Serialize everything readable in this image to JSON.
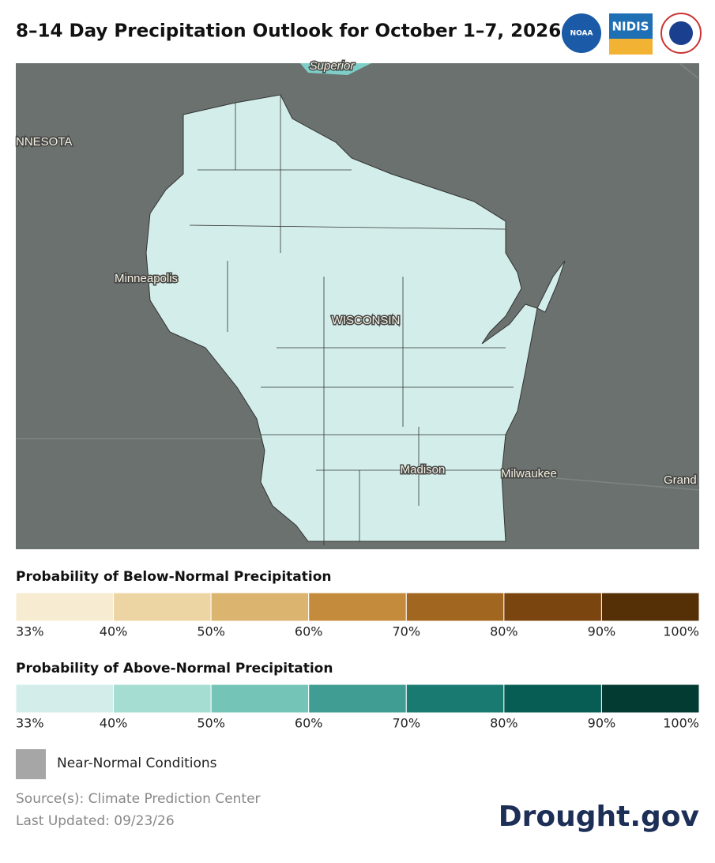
{
  "header": {
    "title": "8–14 Day Precipitation Outlook for October 1–7, 2026",
    "logos": [
      "NOAA",
      "NIDIS"
    ]
  },
  "map": {
    "labels": [
      "Superior",
      "NNESOTA",
      "Minneapolis",
      "WISCONSIN",
      "Madison",
      "Milwaukee",
      "Grand"
    ]
  },
  "legends": [
    {
      "title": "Probability of Below-Normal Precipitation",
      "colors": [
        "#f7ecd1",
        "#ecd5a3",
        "#dbb46f",
        "#c58b3c",
        "#a1661f",
        "#7b4510",
        "#553006"
      ],
      "ticks": [
        "33%",
        "40%",
        "50%",
        "60%",
        "70%",
        "80%",
        "90%",
        "100%"
      ]
    },
    {
      "title": "Probability of Above-Normal Precipitation",
      "colors": [
        "#d3eeea",
        "#a6ddd3",
        "#74c4b8",
        "#3f9d93",
        "#197a72",
        "#075c53",
        "#033a31"
      ],
      "ticks": [
        "33%",
        "40%",
        "50%",
        "60%",
        "70%",
        "80%",
        "90%",
        "100%"
      ]
    }
  ],
  "near_normal": {
    "label": "Near-Normal Conditions",
    "color": "#a6a6a6"
  },
  "footer": {
    "source": "Source(s): Climate Prediction Center",
    "updated": "Last Updated: 09/23/26",
    "brand": "Drought.gov"
  }
}
